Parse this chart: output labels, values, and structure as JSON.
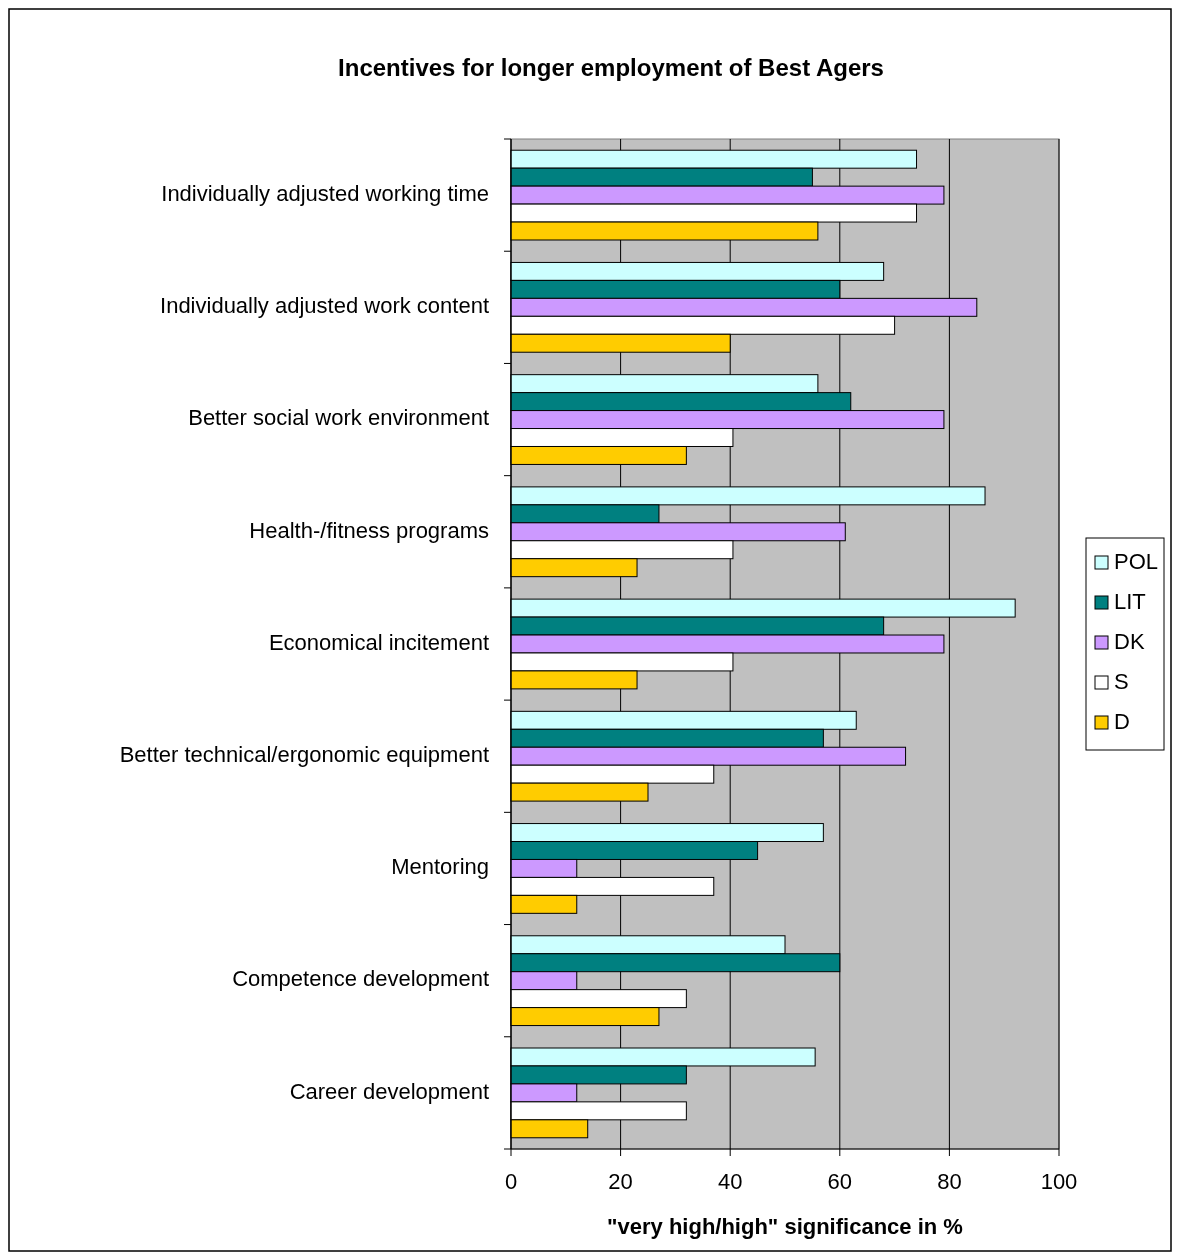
{
  "chart_data": {
    "type": "bar",
    "orientation": "horizontal",
    "title": "Incentives for longer employment of Best Agers",
    "xlabel": "\"very high/high\" significance in %",
    "categories": [
      "Individually adjusted working time",
      "Individually adjusted work content",
      "Better social work environment",
      "Health-/fitness programs",
      "Economical incitement",
      "Better technical/ergonomic equipment",
      "Mentoring",
      "Competence development",
      "Career development"
    ],
    "series": [
      {
        "name": "POL",
        "color": "#ccffff",
        "values": [
          74,
          68,
          56,
          86.5,
          92,
          63,
          57,
          50,
          55.5
        ]
      },
      {
        "name": "LIT",
        "color": "#008080",
        "values": [
          55,
          60,
          62,
          27,
          68,
          57,
          45,
          60,
          32
        ]
      },
      {
        "name": "DK",
        "color": "#cc99ff",
        "values": [
          79,
          85,
          79,
          61,
          79,
          72,
          12,
          12,
          12
        ]
      },
      {
        "name": "S",
        "color": "#ffffff",
        "values": [
          74,
          70,
          40.5,
          40.5,
          40.5,
          37,
          37,
          32,
          32
        ]
      },
      {
        "name": "D",
        "color": "#ffcc00",
        "values": [
          56,
          40,
          32,
          23,
          23,
          25,
          12,
          27,
          14
        ]
      }
    ],
    "xlim": [
      0,
      100
    ],
    "xticks": [
      0,
      20,
      40,
      60,
      80,
      100
    ],
    "grid": "x",
    "legend": "right"
  }
}
